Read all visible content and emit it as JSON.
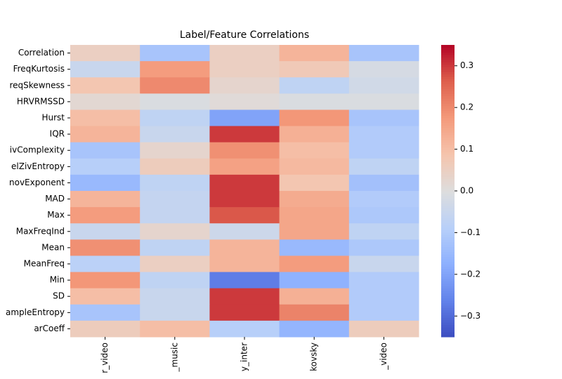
{
  "chart_data": {
    "type": "heatmap",
    "title": "Label/Feature Correlations",
    "colormap": "coolwarm",
    "vlim": [
      -0.35,
      0.35
    ],
    "colorbar_ticks": [
      {
        "value": -0.3,
        "label": "−0.3"
      },
      {
        "value": -0.2,
        "label": "−0.2"
      },
      {
        "value": -0.1,
        "label": "−0.1"
      },
      {
        "value": 0,
        "label": "0.0"
      },
      0.1,
      0.2,
      0.3
    ],
    "rows": [
      "Correlation",
      "FreqKurtosis",
      "reqSkewness",
      "HRVRMSSD",
      "Hurst",
      "IQR",
      "ivComplexity",
      "elZivEntropy",
      "novExponent",
      "MAD",
      "Max",
      "MaxFreqInd",
      "Mean",
      "MeanFreq",
      "Min",
      "SD",
      "ampleEntropy",
      "arCoeff"
    ],
    "columns": [
      "r_video",
      "_music",
      "y_inter",
      "kovsky",
      "_video"
    ],
    "values": [
      [
        0.05,
        -0.12,
        0.05,
        0.12,
        -0.12
      ],
      [
        -0.05,
        0.17,
        0.05,
        0.07,
        -0.02
      ],
      [
        0.08,
        0.2,
        0.03,
        -0.07,
        -0.03
      ],
      [
        0.02,
        -0.01,
        0.01,
        -0.01,
        -0.01
      ],
      [
        0.1,
        -0.07,
        -0.2,
        0.18,
        -0.12
      ],
      [
        0.12,
        -0.05,
        0.3,
        0.13,
        -0.1
      ],
      [
        -0.12,
        0.03,
        0.19,
        0.1,
        -0.1
      ],
      [
        -0.09,
        0.06,
        0.16,
        0.11,
        -0.07
      ],
      [
        -0.15,
        -0.07,
        0.3,
        0.08,
        -0.13
      ],
      [
        0.12,
        -0.06,
        0.3,
        0.14,
        -0.1
      ],
      [
        0.17,
        -0.06,
        0.27,
        0.15,
        -0.11
      ],
      [
        -0.05,
        0.03,
        -0.04,
        0.15,
        -0.07
      ],
      [
        0.19,
        -0.07,
        0.12,
        -0.15,
        -0.11
      ],
      [
        -0.08,
        0.05,
        0.12,
        0.17,
        -0.05
      ],
      [
        0.18,
        -0.07,
        -0.27,
        -0.17,
        -0.1
      ],
      [
        0.1,
        -0.05,
        0.3,
        0.13,
        -0.1
      ],
      [
        -0.12,
        -0.05,
        0.3,
        0.21,
        -0.1
      ],
      [
        0.06,
        0.1,
        -0.09,
        -0.16,
        0.06
      ]
    ]
  }
}
